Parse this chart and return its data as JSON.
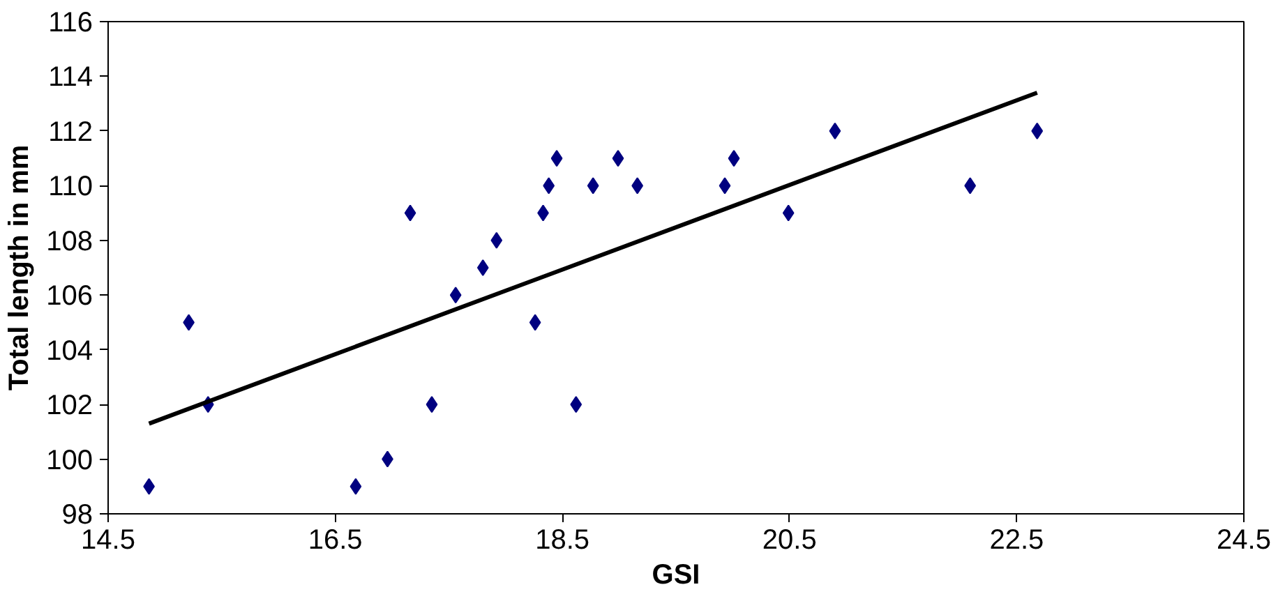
{
  "chart_data": {
    "type": "scatter",
    "xlabel": "GSI",
    "ylabel": "Total length in mm",
    "xlim": [
      14.5,
      24.5
    ],
    "xticks": [
      14.5,
      16.5,
      18.5,
      20.5,
      22.5,
      24.5
    ],
    "ylim": [
      98,
      116
    ],
    "yticks": [
      98,
      100,
      102,
      104,
      106,
      108,
      110,
      112,
      114,
      116
    ],
    "grid": false,
    "series": [
      {
        "marker": "diamond",
        "color": "#000080",
        "x": [
          14.86,
          15.21,
          15.38,
          16.68,
          16.96,
          17.16,
          17.35,
          17.56,
          17.8,
          17.92,
          18.26,
          18.33,
          18.38,
          18.45,
          18.62,
          18.77,
          18.99,
          19.16,
          19.93,
          20.01,
          20.49,
          20.9,
          22.09,
          22.68
        ],
        "values": [
          99,
          105,
          102,
          99,
          100,
          109,
          102,
          106,
          107,
          108,
          105,
          109,
          110,
          111,
          102,
          110,
          111,
          110,
          110,
          111,
          109,
          112,
          110,
          112
        ]
      },
      {
        "type": "line",
        "color": "#000000",
        "x": [
          14.86,
          22.68
        ],
        "values": [
          101.3,
          113.4
        ]
      }
    ]
  }
}
